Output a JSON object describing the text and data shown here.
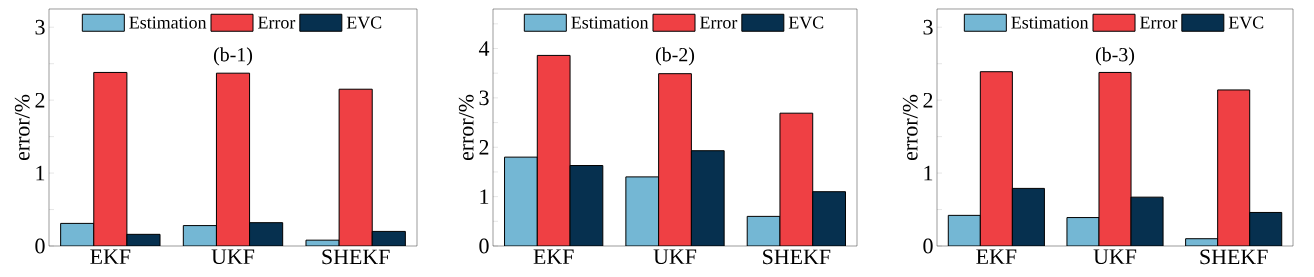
{
  "chart_data": [
    {
      "type": "bar",
      "categories": [
        "EKF",
        "UKF",
        "SHEKF"
      ],
      "ylabel": "error/%",
      "annotations": [
        "(b-1)"
      ],
      "legend": "top",
      "ylim": [
        0,
        3.25
      ],
      "yticks": [
        0,
        {
          "value": 0.5,
          "label": null
        },
        1,
        {
          "value": 1.5,
          "label": null
        },
        2,
        {
          "value": 2.5,
          "label": null
        },
        3
      ],
      "series": [
        {
          "name": "Estimation",
          "color": "#74b7d4",
          "values": [
            0.31,
            0.28,
            0.08
          ]
        },
        {
          "name": "Error",
          "color": "#ef4044",
          "values": [
            2.38,
            2.37,
            2.15
          ]
        },
        {
          "name": "EVC",
          "color": "#06304f",
          "values": [
            0.16,
            0.32,
            0.2
          ]
        }
      ]
    },
    {
      "type": "bar",
      "categories": [
        "EKF",
        "UKF",
        "SHEKF"
      ],
      "ylabel": "error/%",
      "annotations": [
        "(b-2)"
      ],
      "legend": "top",
      "ylim": [
        0,
        4.8
      ],
      "yticks": [
        0,
        {
          "value": 0.5,
          "label": null
        },
        1,
        {
          "value": 1.5,
          "label": null
        },
        2,
        {
          "value": 2.5,
          "label": null
        },
        3,
        {
          "value": 3.5,
          "label": null
        },
        4,
        {
          "value": 4.5,
          "label": null
        }
      ],
      "series": [
        {
          "name": "Estimation",
          "color": "#74b7d4",
          "values": [
            1.8,
            1.4,
            0.6
          ]
        },
        {
          "name": "Error",
          "color": "#ef4044",
          "values": [
            3.86,
            3.49,
            2.69
          ]
        },
        {
          "name": "EVC",
          "color": "#06304f",
          "values": [
            1.63,
            1.93,
            1.1
          ]
        }
      ]
    },
    {
      "type": "bar",
      "categories": [
        "EKF",
        "UKF",
        "SHEKF"
      ],
      "ylabel": "error/%",
      "annotations": [
        "(b-3)"
      ],
      "legend": "top",
      "ylim": [
        0,
        3.25
      ],
      "yticks": [
        0,
        {
          "value": 0.5,
          "label": null
        },
        1,
        {
          "value": 1.5,
          "label": null
        },
        2,
        {
          "value": 2.5,
          "label": null
        },
        3
      ],
      "series": [
        {
          "name": "Estimation",
          "color": "#74b7d4",
          "values": [
            0.42,
            0.39,
            0.1
          ]
        },
        {
          "name": "Error",
          "color": "#ef4044",
          "values": [
            2.39,
            2.38,
            2.14
          ]
        },
        {
          "name": "EVC",
          "color": "#06304f",
          "values": [
            0.79,
            0.67,
            0.46
          ]
        }
      ]
    }
  ]
}
